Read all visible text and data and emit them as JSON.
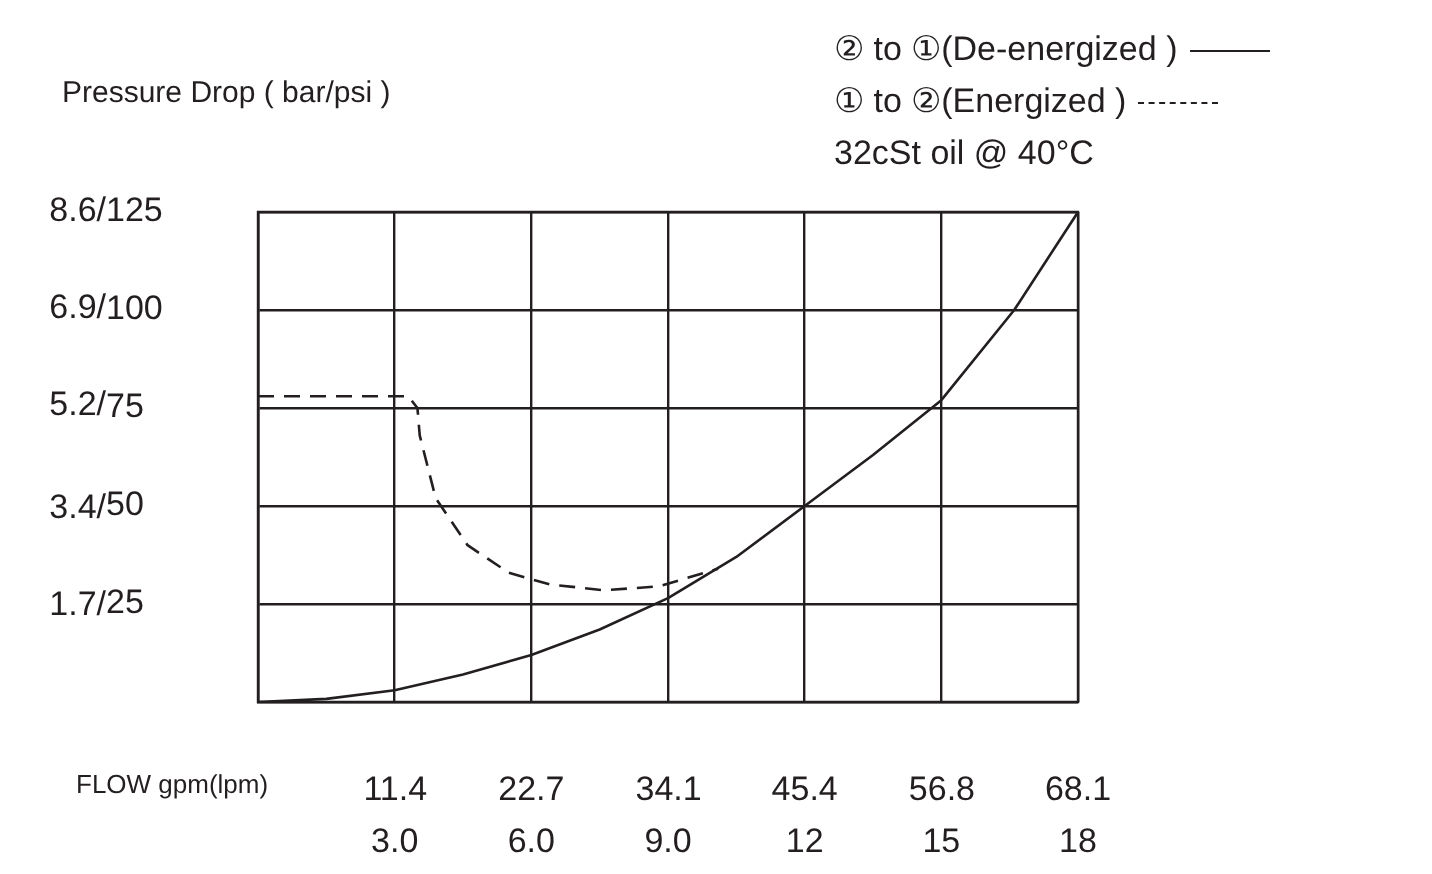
{
  "chart_data": {
    "type": "line",
    "ylabel": "Pressure Drop ( bar/psi )",
    "xlabel": "FLOW gpm(lpm)",
    "annotations": [
      "32cSt oil @ 40°C"
    ],
    "legend": "top right",
    "grid": true,
    "marker": "none",
    "xlim": [
      0,
      18
    ],
    "xticks": [
      {
        "value": 0,
        "label": null
      },
      {
        "value": 3,
        "label": "3.0"
      },
      {
        "value": 6,
        "label": "6.0"
      },
      {
        "value": 9,
        "label": "9.0"
      },
      12,
      15,
      18
    ],
    "x2lim": [
      0,
      68.1
    ],
    "x2ticks": [
      11.4,
      22.7,
      34.1,
      45.4,
      56.8,
      68.1
    ],
    "ylim": [
      0,
      125
    ],
    "yticks": [
      {
        "value": 0,
        "label": null
      },
      25,
      50,
      75,
      100,
      125
    ],
    "y2lim": [
      0,
      8.6
    ],
    "y2ticks": [
      {
        "value": 1.7,
        "label": "1.7/"
      },
      {
        "value": 3.4,
        "label": "3.4/"
      },
      {
        "value": 5.2,
        "label": "5.2/"
      },
      {
        "value": 6.9,
        "label": "6.9/"
      },
      {
        "value": 8.6,
        "label": "8.6/"
      }
    ],
    "series": [
      {
        "name": "② to ①(De-energized )",
        "color": "#231f20",
        "line_style": "solid",
        "x": [
          0,
          1.5,
          3,
          4.5,
          6,
          7.5,
          9,
          10.5,
          12,
          13.5,
          15,
          16.6,
          18
        ],
        "values": [
          0,
          0.8,
          3,
          7,
          12,
          18.5,
          26.5,
          37,
          50,
          63,
          77,
          100,
          125
        ]
      },
      {
        "name": "① to ②(Energized )",
        "color": "#231f20",
        "line_style": "dashed",
        "x": [
          0,
          3.3,
          3.5,
          3.55,
          3.9,
          4.6,
          5.5,
          6.4,
          7.6,
          8.8,
          10.1
        ],
        "values": [
          78,
          78,
          75,
          68,
          52,
          40,
          33,
          30,
          28.5,
          29.5,
          34
        ]
      }
    ]
  }
}
